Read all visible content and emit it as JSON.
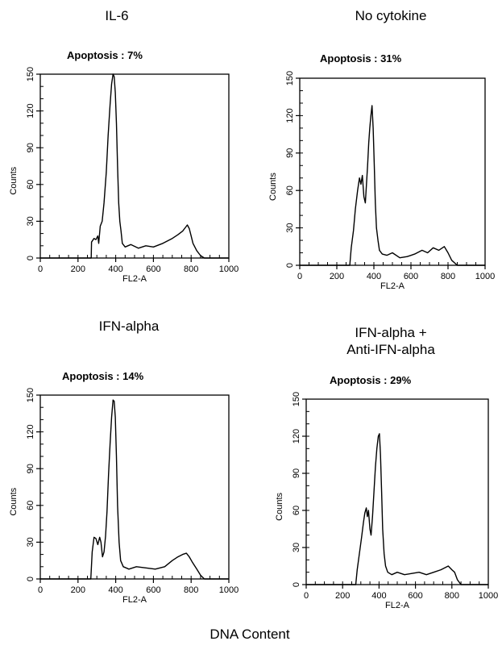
{
  "page": {
    "footer_label": "DNA Content"
  },
  "chart_data": [
    {
      "type": "area",
      "condition": "IL-6",
      "title": "Apoptosis : 7%",
      "xlabel": "FL2-A",
      "ylabel": "Counts",
      "xlim": [
        0,
        1000
      ],
      "ylim": [
        0,
        150
      ],
      "xticks": [
        0,
        200,
        400,
        600,
        800,
        1000
      ],
      "yticks": [
        0,
        30,
        60,
        90,
        120,
        150
      ],
      "x": [
        0,
        270,
        272,
        285,
        295,
        305,
        310,
        318,
        328,
        338,
        350,
        360,
        370,
        378,
        386,
        392,
        398,
        404,
        410,
        416,
        422,
        428,
        435,
        450,
        480,
        520,
        560,
        600,
        650,
        700,
        730,
        755,
        770,
        780,
        790,
        800,
        810,
        830,
        850,
        870,
        1000
      ],
      "y": [
        0,
        0,
        13,
        16,
        15,
        18,
        12,
        26,
        30,
        45,
        70,
        100,
        125,
        142,
        150,
        148,
        135,
        110,
        75,
        45,
        30,
        22,
        12,
        9,
        11,
        8,
        10,
        9,
        12,
        16,
        19,
        22,
        25,
        27,
        24,
        18,
        12,
        6,
        2,
        0,
        0
      ]
    },
    {
      "type": "area",
      "condition": "No cytokine",
      "title": "Apoptosis : 31%",
      "xlabel": "FL2-A",
      "ylabel": "Counts",
      "xlim": [
        0,
        1000
      ],
      "ylim": [
        0,
        150
      ],
      "xticks": [
        0,
        200,
        400,
        600,
        800,
        1000
      ],
      "yticks": [
        0,
        30,
        60,
        90,
        120,
        150
      ],
      "x": [
        0,
        270,
        278,
        290,
        300,
        312,
        322,
        330,
        338,
        346,
        354,
        360,
        366,
        372,
        378,
        384,
        390,
        396,
        402,
        408,
        414,
        422,
        430,
        445,
        470,
        500,
        540,
        580,
        620,
        660,
        690,
        720,
        750,
        780,
        800,
        820,
        850,
        1000
      ],
      "y": [
        0,
        0,
        14,
        28,
        45,
        60,
        70,
        65,
        72,
        55,
        50,
        65,
        80,
        98,
        110,
        120,
        128,
        110,
        80,
        50,
        30,
        20,
        12,
        9,
        8,
        10,
        6,
        7,
        9,
        12,
        10,
        14,
        12,
        15,
        10,
        4,
        0,
        0
      ]
    },
    {
      "type": "area",
      "condition": "IFN-alpha",
      "title": "Apoptosis : 14%",
      "xlabel": "FL2-A",
      "ylabel": "Counts",
      "xlim": [
        0,
        1000
      ],
      "ylim": [
        0,
        150
      ],
      "xticks": [
        0,
        200,
        400,
        600,
        800,
        1000
      ],
      "yticks": [
        0,
        30,
        60,
        90,
        120,
        150
      ],
      "x": [
        0,
        268,
        275,
        285,
        295,
        305,
        315,
        322,
        330,
        338,
        346,
        354,
        362,
        370,
        378,
        386,
        392,
        398,
        404,
        410,
        418,
        426,
        440,
        470,
        510,
        560,
        610,
        660,
        700,
        730,
        755,
        775,
        790,
        805,
        830,
        850,
        870,
        1000
      ],
      "y": [
        0,
        0,
        22,
        34,
        33,
        28,
        34,
        30,
        18,
        22,
        35,
        55,
        85,
        110,
        132,
        146,
        145,
        132,
        100,
        60,
        30,
        15,
        10,
        8,
        10,
        9,
        8,
        10,
        15,
        18,
        20,
        21,
        18,
        14,
        8,
        3,
        0,
        0
      ]
    },
    {
      "type": "area",
      "condition": "IFN-alpha + Anti-IFN-alpha",
      "condition_lines": [
        "IFN-alpha +",
        "Anti-IFN-alpha"
      ],
      "title": "Apoptosis :  29%",
      "xlabel": "FL2-A",
      "ylabel": "Counts",
      "xlim": [
        0,
        1000
      ],
      "ylim": [
        0,
        150
      ],
      "xticks": [
        0,
        200,
        400,
        600,
        800,
        1000
      ],
      "yticks": [
        0,
        30,
        60,
        90,
        120,
        150
      ],
      "x": [
        0,
        272,
        280,
        292,
        304,
        314,
        322,
        330,
        336,
        342,
        350,
        356,
        364,
        372,
        380,
        388,
        396,
        402,
        408,
        414,
        420,
        428,
        436,
        448,
        470,
        500,
        540,
        580,
        620,
        660,
        700,
        740,
        780,
        800,
        815,
        830,
        850,
        1000
      ],
      "y": [
        0,
        0,
        12,
        25,
        38,
        50,
        58,
        62,
        55,
        60,
        45,
        40,
        55,
        75,
        95,
        110,
        120,
        122,
        105,
        75,
        45,
        25,
        15,
        10,
        8,
        10,
        8,
        9,
        10,
        8,
        10,
        12,
        15,
        12,
        10,
        4,
        0,
        0
      ]
    }
  ]
}
